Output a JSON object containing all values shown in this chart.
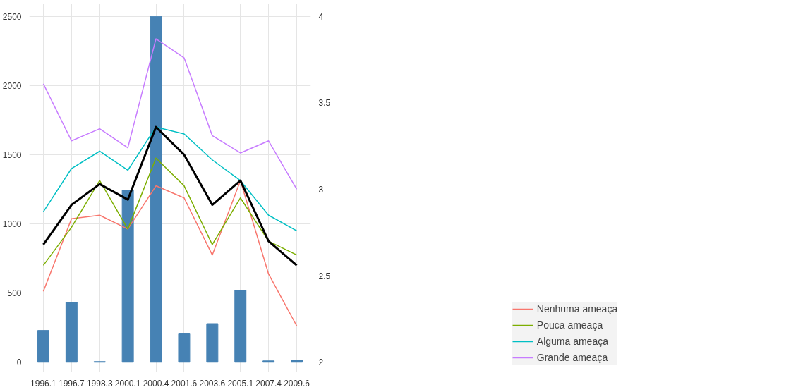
{
  "chart_data": {
    "type": "bar",
    "categories": [
      "1996.1",
      "1996.7",
      "1998.3",
      "2000.1",
      "2000.4",
      "2001.6",
      "2003.6",
      "2005.1",
      "2007.4",
      "2009.6"
    ],
    "ylim": [
      -70,
      2590
    ],
    "yticks": [
      0,
      500,
      1000,
      1500,
      2000,
      2500
    ],
    "y2lim": [
      1.944,
      4.072
    ],
    "y2ticks": [
      2,
      2.5,
      3,
      3.5,
      4
    ],
    "grid": true,
    "legend": "right",
    "series": [
      {
        "color": "#4682b4",
        "values": [
          230,
          432,
          5,
          1242,
          2500,
          205,
          279,
          521,
          10,
          15
        ]
      },
      {
        "type": "line",
        "axis": "y2",
        "name": "Nenhuma ameaça",
        "color": "#f8766d",
        "values": [
          2.41,
          2.83,
          2.85,
          2.77,
          3.02,
          2.95,
          2.62,
          3.05,
          2.51,
          2.21
        ]
      },
      {
        "type": "line",
        "axis": "y2",
        "name": "Pouca ameaça",
        "color": "#7cae00",
        "values": [
          2.56,
          2.78,
          3.05,
          2.77,
          3.18,
          3.02,
          2.68,
          2.95,
          2.7,
          2.62
        ]
      },
      {
        "type": "line",
        "axis": "y2",
        "name": "Alguma ameaça",
        "color": "#00bfc4",
        "values": [
          2.87,
          3.12,
          3.22,
          3.11,
          3.36,
          3.32,
          3.17,
          3.05,
          2.85,
          2.76
        ]
      },
      {
        "type": "line",
        "axis": "y2",
        "name": "Grande ameaça",
        "color": "#c77cff",
        "values": [
          3.61,
          3.28,
          3.35,
          3.24,
          3.87,
          3.76,
          3.31,
          3.21,
          3.28,
          3.0
        ]
      },
      {
        "type": "line",
        "axis": "y2",
        "color": "#000000",
        "values": [
          2.68,
          2.91,
          3.03,
          2.94,
          3.36,
          3.2,
          2.91,
          3.05,
          2.7,
          2.56
        ]
      }
    ]
  }
}
